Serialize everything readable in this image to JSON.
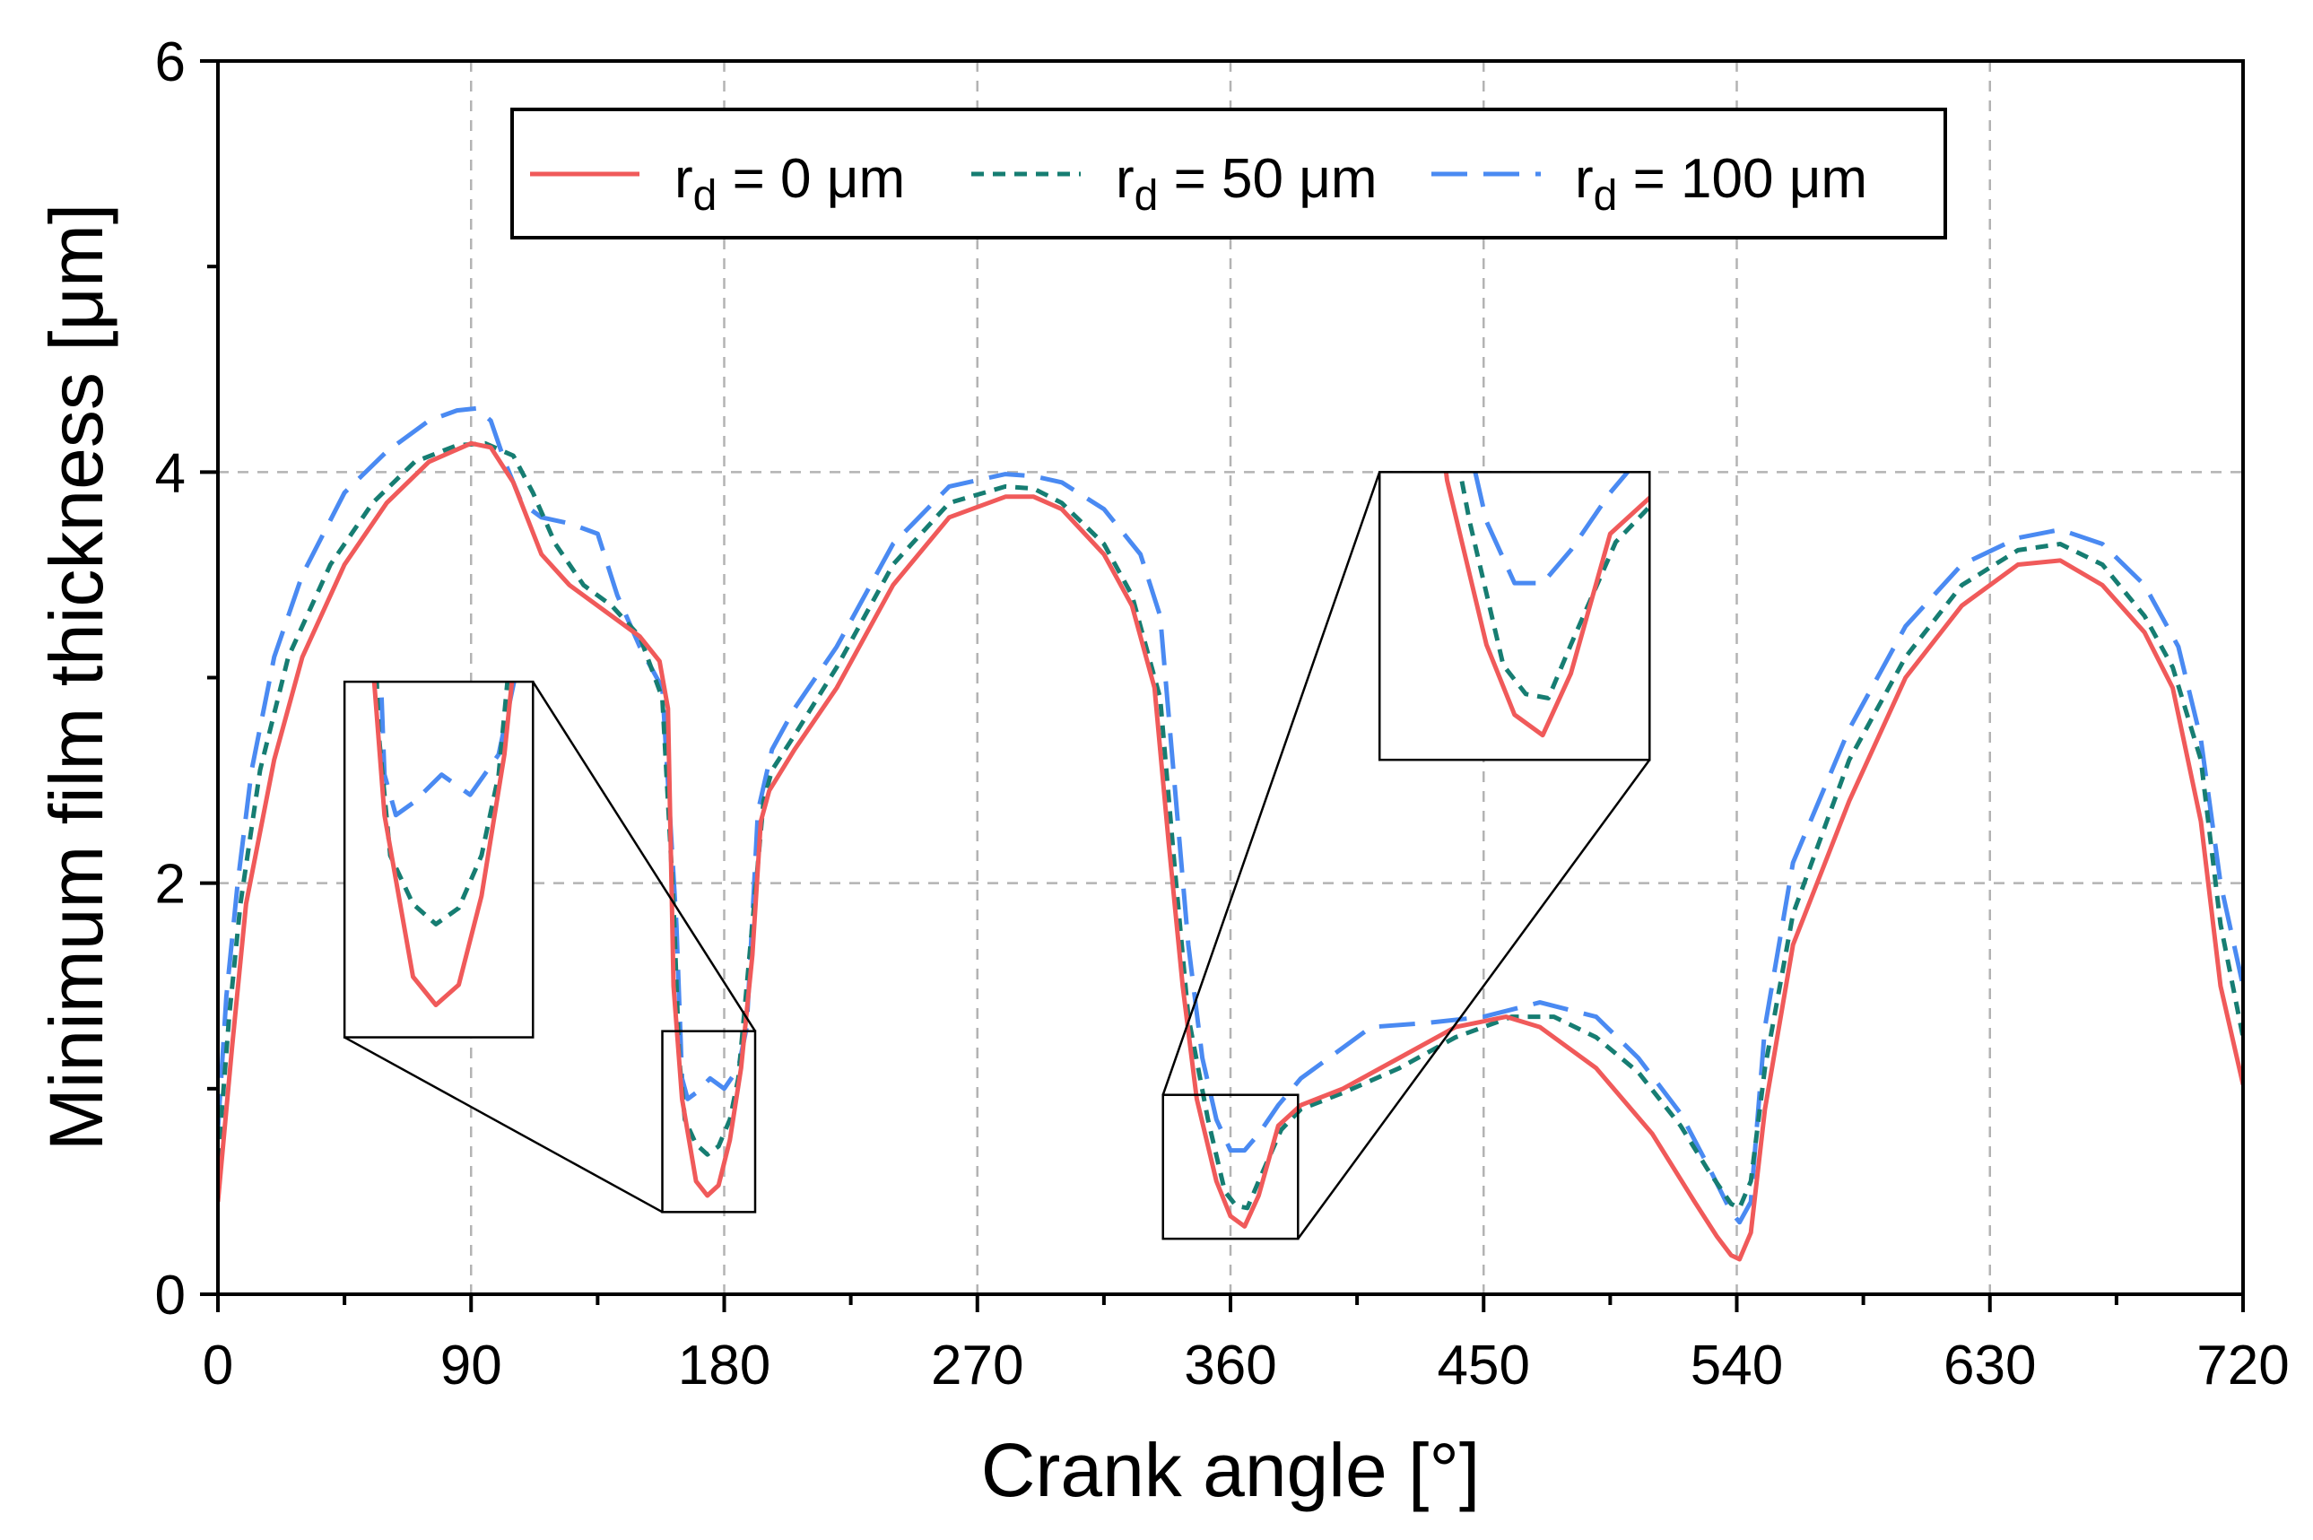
{
  "chart_data": {
    "type": "line",
    "title": "",
    "xlabel": "Crank angle [°]",
    "ylabel": "Minimum film thickness [μm]",
    "xlim": [
      0,
      720
    ],
    "ylim": [
      0,
      6
    ],
    "xticks": [
      0,
      90,
      180,
      270,
      360,
      450,
      540,
      630,
      720
    ],
    "yticks": [
      0,
      2,
      4,
      6
    ],
    "grid": true,
    "legend_position": "top",
    "series": [
      {
        "name": "rd = 0 μm",
        "label_main": "r",
        "label_sub": "d",
        "label_rest": " = 0 μm",
        "color": "#F05A5A",
        "dash": "solid",
        "x": [
          0,
          5,
          10,
          20,
          30,
          45,
          60,
          75,
          90,
          97,
          105,
          115,
          125,
          140,
          150,
          157,
          160,
          162,
          165,
          170,
          174,
          178,
          182,
          186,
          190,
          193,
          196,
          205,
          220,
          240,
          260,
          280,
          290,
          300,
          315,
          325,
          333,
          338,
          343,
          348,
          355,
          360,
          365,
          370,
          377,
          385,
          400,
          420,
          440,
          458,
          470,
          490,
          510,
          525,
          533,
          538,
          541,
          545,
          550,
          560,
          580,
          600,
          620,
          640,
          655,
          670,
          685,
          695,
          705,
          712,
          720
        ],
        "y": [
          0.45,
          1.2,
          1.9,
          2.6,
          3.1,
          3.55,
          3.85,
          4.05,
          4.14,
          4.12,
          3.95,
          3.6,
          3.45,
          3.3,
          3.2,
          3.08,
          2.85,
          1.5,
          0.95,
          0.55,
          0.48,
          0.53,
          0.75,
          1.1,
          1.65,
          2.3,
          2.45,
          2.65,
          2.95,
          3.45,
          3.78,
          3.88,
          3.88,
          3.82,
          3.6,
          3.35,
          2.95,
          2.2,
          1.5,
          0.95,
          0.55,
          0.38,
          0.33,
          0.48,
          0.82,
          0.92,
          1.0,
          1.15,
          1.3,
          1.35,
          1.3,
          1.1,
          0.78,
          0.45,
          0.28,
          0.19,
          0.17,
          0.3,
          0.9,
          1.7,
          2.4,
          3.0,
          3.35,
          3.55,
          3.57,
          3.45,
          3.22,
          2.95,
          2.3,
          1.5,
          1.02
        ]
      },
      {
        "name": "rd = 50 μm",
        "label_main": "r",
        "label_sub": "d",
        "label_rest": " = 50 μm",
        "color": "#167D72",
        "dash": "short-dash",
        "x": [
          0,
          4,
          8,
          15,
          25,
          40,
          55,
          70,
          85,
          95,
          105,
          112,
          120,
          130,
          140,
          150,
          158,
          162,
          164,
          166,
          170,
          174,
          178,
          182,
          185,
          190,
          194,
          197,
          205,
          220,
          240,
          260,
          280,
          290,
          300,
          315,
          325,
          335,
          340,
          345,
          352,
          358,
          362,
          366,
          370,
          378,
          385,
          400,
          420,
          440,
          460,
          475,
          490,
          505,
          520,
          530,
          538,
          541,
          545,
          550,
          560,
          580,
          600,
          620,
          640,
          655,
          670,
          685,
          695,
          705,
          712,
          720
        ],
        "y": [
          0.65,
          1.35,
          1.9,
          2.55,
          3.1,
          3.55,
          3.85,
          4.05,
          4.13,
          4.14,
          4.08,
          3.9,
          3.65,
          3.45,
          3.35,
          3.2,
          2.9,
          1.9,
          1.15,
          0.85,
          0.73,
          0.68,
          0.72,
          0.85,
          1.05,
          1.8,
          2.4,
          2.55,
          2.72,
          3.05,
          3.55,
          3.85,
          3.93,
          3.92,
          3.85,
          3.65,
          3.4,
          2.9,
          2.1,
          1.35,
          0.85,
          0.5,
          0.43,
          0.42,
          0.55,
          0.8,
          0.9,
          0.98,
          1.1,
          1.25,
          1.35,
          1.35,
          1.25,
          1.08,
          0.82,
          0.6,
          0.44,
          0.42,
          0.55,
          1.1,
          1.85,
          2.6,
          3.1,
          3.45,
          3.62,
          3.65,
          3.55,
          3.3,
          3.05,
          2.6,
          1.8,
          1.25
        ]
      },
      {
        "name": "rd = 100 μm",
        "label_main": "r",
        "label_sub": "d",
        "label_rest": " = 100 μm",
        "color": "#4A8AF2",
        "dash": "long-dash",
        "x": [
          0,
          3,
          7,
          12,
          20,
          30,
          45,
          60,
          75,
          85,
          92,
          97,
          102,
          108,
          115,
          125,
          135,
          142,
          150,
          158,
          163,
          165,
          167,
          170,
          175,
          180,
          185,
          188,
          192,
          197,
          205,
          220,
          240,
          260,
          280,
          290,
          300,
          315,
          328,
          335,
          340,
          345,
          350,
          355,
          360,
          365,
          370,
          377,
          385,
          395,
          410,
          430,
          450,
          470,
          490,
          505,
          520,
          530,
          538,
          541,
          545,
          550,
          560,
          580,
          600,
          620,
          640,
          655,
          670,
          685,
          697,
          705,
          712,
          720
        ],
        "y": [
          0.8,
          1.45,
          2.0,
          2.55,
          3.1,
          3.5,
          3.9,
          4.1,
          4.25,
          4.3,
          4.31,
          4.25,
          4.05,
          3.85,
          3.78,
          3.75,
          3.7,
          3.4,
          3.15,
          2.95,
          1.8,
          1.05,
          0.95,
          0.98,
          1.05,
          1.0,
          1.1,
          1.3,
          2.35,
          2.65,
          2.85,
          3.15,
          3.65,
          3.93,
          3.99,
          3.98,
          3.95,
          3.82,
          3.6,
          3.3,
          2.5,
          1.7,
          1.15,
          0.85,
          0.7,
          0.7,
          0.78,
          0.92,
          1.05,
          1.15,
          1.3,
          1.32,
          1.35,
          1.42,
          1.35,
          1.15,
          0.88,
          0.62,
          0.4,
          0.35,
          0.45,
          1.3,
          2.1,
          2.75,
          3.25,
          3.55,
          3.68,
          3.72,
          3.65,
          3.45,
          3.15,
          2.7,
          2.0,
          1.5
        ]
      }
    ],
    "insets": [
      {
        "name": "inset-left",
        "source_x_range": [
          158,
          191
        ],
        "source_y_range": [
          0.4,
          1.28
        ],
        "target_x_range": [
          45,
          112
        ],
        "target_y_range": [
          1.25,
          2.98
        ],
        "connector_color": "#000000"
      },
      {
        "name": "inset-right",
        "source_x_range": [
          336,
          384
        ],
        "source_y_range": [
          0.27,
          0.97
        ],
        "target_x_range": [
          413,
          509
        ],
        "target_y_range": [
          2.6,
          4.0
        ],
        "connector_color": "#000000"
      }
    ]
  }
}
